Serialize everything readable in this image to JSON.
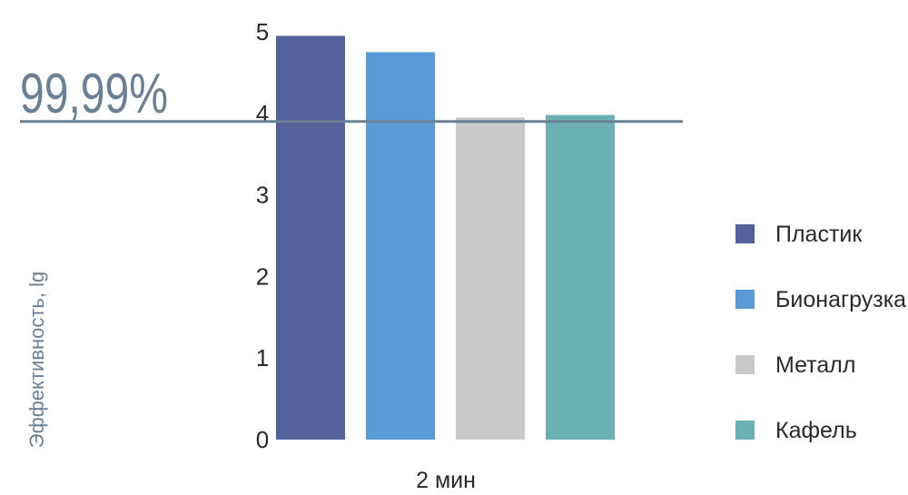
{
  "chart_data": {
    "type": "bar",
    "categories": [
      "2 мин"
    ],
    "series": [
      {
        "name": "Пластик",
        "values": [
          4.95
        ],
        "color": "#53629a"
      },
      {
        "name": "Бионагрузка",
        "values": [
          4.75
        ],
        "color": "#5b9bd5"
      },
      {
        "name": "Металл",
        "values": [
          3.95
        ],
        "color": "#c8c9c9"
      },
      {
        "name": "Кафель",
        "values": [
          3.98
        ],
        "color": "#6ab0b5"
      }
    ],
    "xlabel": "2 мин",
    "ylabel": "Эффективность, lg",
    "ylim": [
      0,
      5
    ],
    "yticks": [
      0,
      1,
      2,
      3,
      4,
      5
    ],
    "grid": false,
    "legend": "right",
    "reference_line": {
      "value": 3.9,
      "label": "99,99%",
      "color": "#6b8095"
    }
  }
}
